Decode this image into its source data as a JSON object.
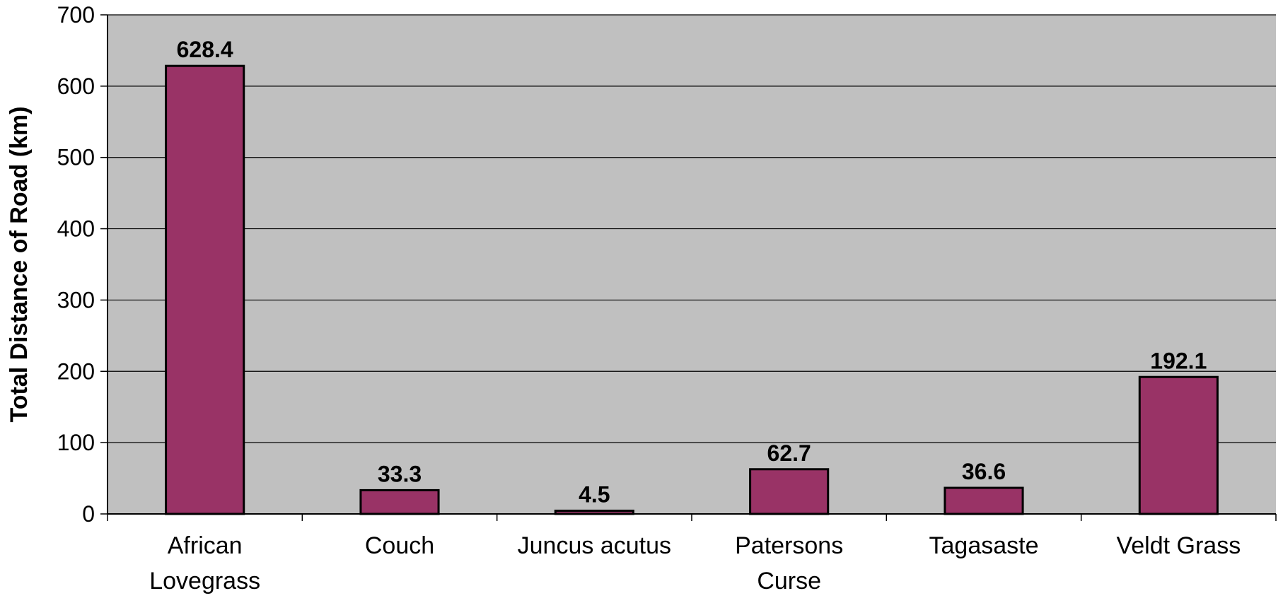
{
  "chart_data": {
    "type": "bar",
    "title": "",
    "xlabel": "",
    "ylabel": "Total Distance of Road (km)",
    "categories": [
      [
        "African",
        "Lovegrass"
      ],
      [
        "Couch"
      ],
      [
        "Juncus acutus"
      ],
      [
        "Patersons",
        "Curse"
      ],
      [
        "Tagasaste"
      ],
      [
        "Veldt Grass"
      ]
    ],
    "values": [
      628.4,
      33.3,
      4.5,
      62.7,
      36.6,
      192.1
    ],
    "data_labels": [
      "628.4",
      "33.3",
      "4.5",
      "62.7",
      "36.6",
      "192.1"
    ],
    "ylim": [
      0,
      700
    ],
    "yticks": [
      0,
      100,
      200,
      300,
      400,
      500,
      600,
      700
    ],
    "grid": true,
    "legend": "none",
    "colors": {
      "bar_fill": "#993366",
      "bar_stroke": "#000000",
      "plot_background": "#C0C0C0",
      "gridline": "#000000"
    }
  }
}
